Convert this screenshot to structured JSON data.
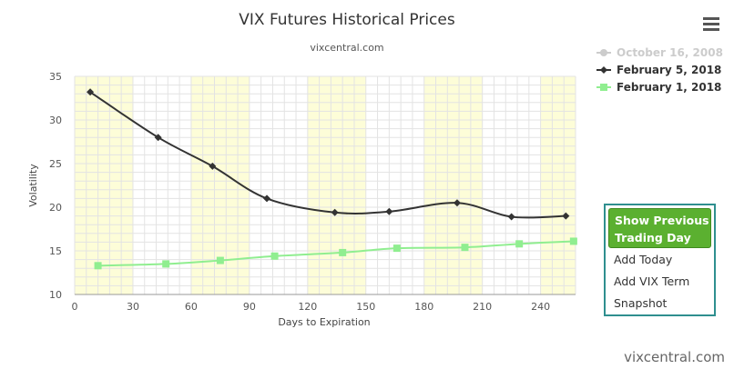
{
  "header": {
    "title": "VIX Futures Historical Prices",
    "subtitle": "vixcentral.com"
  },
  "footer": {
    "watermark": "vixcentral.com"
  },
  "menu": {
    "primary": [
      "Show Previous",
      "Trading Day"
    ],
    "items": [
      "Add Today",
      "Add VIX Term",
      "Snapshot"
    ]
  },
  "chart_data": {
    "type": "line",
    "xlabel": "Days to Expiration",
    "ylabel": "Volatility",
    "xlim": [
      0,
      258
    ],
    "ylim": [
      10,
      35
    ],
    "xticks": [
      0,
      30,
      60,
      90,
      120,
      150,
      180,
      210,
      240
    ],
    "yticks": [
      10,
      15,
      20,
      25,
      30,
      35
    ],
    "grid": true,
    "legend_position": "top-right",
    "series": [
      {
        "name": "October 16, 2008",
        "color": "#cccccc",
        "marker": "circle",
        "hidden": true,
        "x": [],
        "y": []
      },
      {
        "name": "February 5, 2018",
        "color": "#333333",
        "marker": "diamond",
        "x": [
          8,
          43,
          71,
          99,
          134,
          162,
          197,
          225,
          253
        ],
        "y": [
          33.2,
          28.0,
          24.7,
          21.0,
          19.4,
          19.5,
          20.5,
          18.9,
          19.0
        ]
      },
      {
        "name": "February 1, 2018",
        "color": "#90ee90",
        "marker": "square",
        "x": [
          12,
          47,
          75,
          103,
          138,
          166,
          201,
          229,
          257
        ],
        "y": [
          13.3,
          13.5,
          13.9,
          14.4,
          14.8,
          15.3,
          15.4,
          15.8,
          16.1
        ]
      }
    ]
  }
}
